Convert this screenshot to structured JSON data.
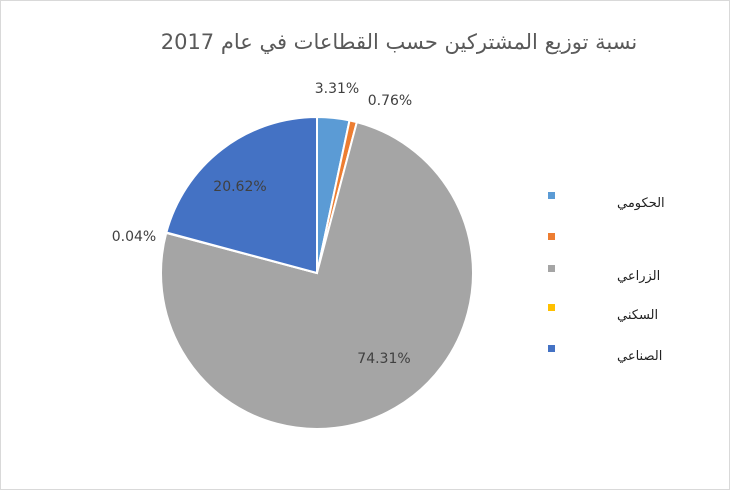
{
  "chart_data": {
    "type": "pie",
    "title": "نسبة توزيع المشتركين حسب القطاعات في عام 2017",
    "slices": [
      {
        "name": "الحكومي",
        "value": 3.31,
        "label": "3.31%",
        "color": "#5b9bd5"
      },
      {
        "name": "",
        "value": 0.76,
        "label": "0.76%",
        "color": "#ed7d31"
      },
      {
        "name": "الزراعي",
        "value": 74.31,
        "label": "74.31%",
        "color": "#a5a5a5"
      },
      {
        "name": "السكني",
        "value": 0.04,
        "label": "0.04%",
        "color": "#ffc000"
      },
      {
        "name": "الصناعي",
        "value": 20.62,
        "label": "20.62%",
        "color": "#4472c4"
      }
    ],
    "legend_position": "right"
  }
}
